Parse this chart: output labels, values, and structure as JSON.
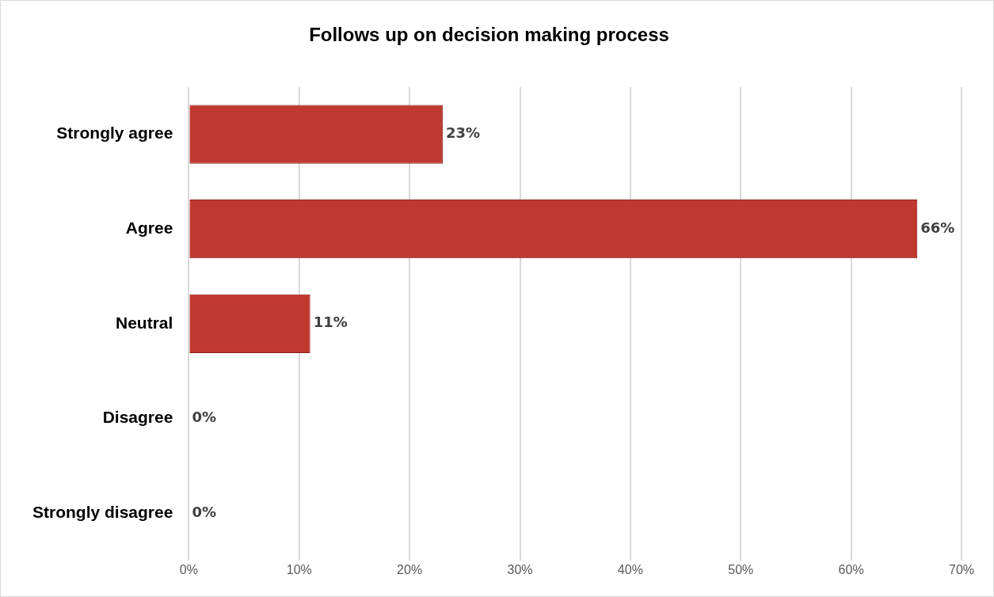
{
  "chart_data": {
    "type": "bar",
    "orientation": "horizontal",
    "title": "Follows up on decision making process",
    "categories": [
      "Strongly agree",
      "Agree",
      "Neutral",
      "Disagree",
      "Strongly disagree"
    ],
    "values": [
      23,
      66,
      11,
      0,
      0
    ],
    "value_labels": [
      "23%",
      "66%",
      "11%",
      "0%",
      "0%"
    ],
    "color": "#c0392f",
    "xlim": [
      0,
      70
    ],
    "xticks": [
      {
        "value": 0,
        "label": "0%"
      },
      {
        "value": 10,
        "label": "10%"
      },
      {
        "value": 20,
        "label": "20%"
      },
      {
        "value": 30,
        "label": "30%"
      },
      {
        "value": 40,
        "label": "40%"
      },
      {
        "value": 50,
        "label": "50%"
      },
      {
        "value": 60,
        "label": "60%"
      },
      {
        "value": 70,
        "label": "70%"
      }
    ],
    "grid": "x",
    "legend": false
  }
}
